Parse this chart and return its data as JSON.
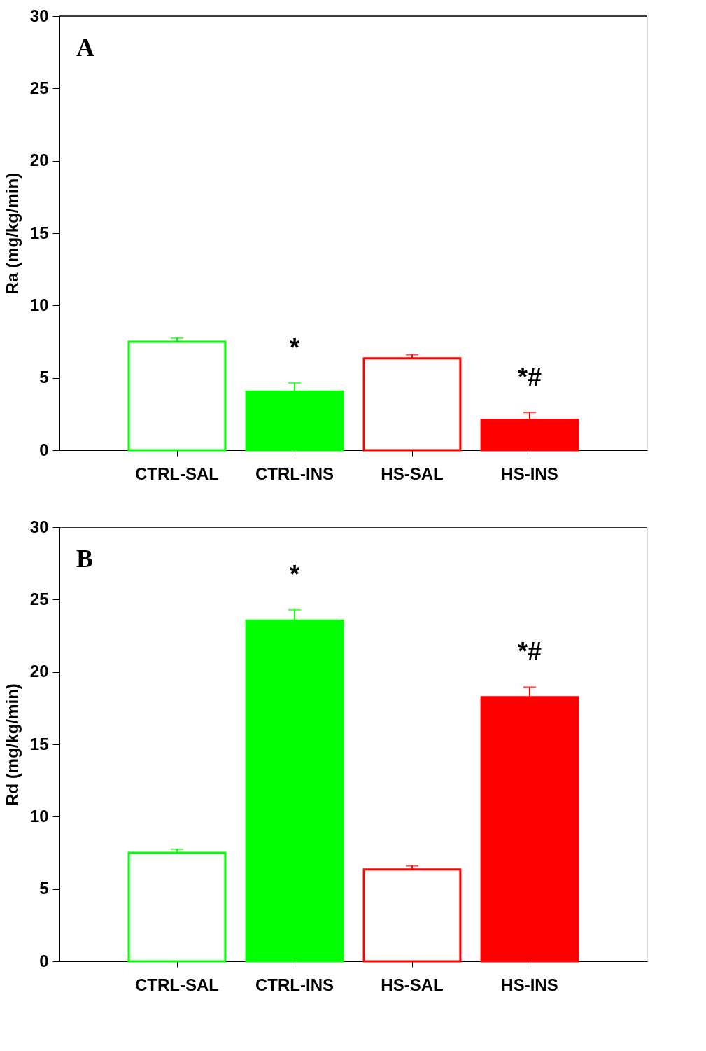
{
  "chart_data": [
    {
      "type": "bar",
      "ylabel": "Ra (mg/kg/min)",
      "categories": [
        "CTRL-SAL",
        "CTRL-INS",
        "HS-SAL",
        "HS-INS"
      ],
      "values": [
        7.5,
        4.05,
        6.35,
        2.1
      ],
      "errors": [
        0.25,
        0.6,
        0.25,
        0.5
      ],
      "colors": [
        "#00ff00",
        "#00ff00",
        "#ff0000",
        "#ff0000"
      ],
      "ylim": [
        0,
        30
      ],
      "yticks": [
        0,
        5,
        10,
        15,
        20,
        25,
        30
      ],
      "grid": false,
      "annotations": [
        "A",
        "*",
        "*#"
      ]
    },
    {
      "type": "bar",
      "ylabel": "Rd (mg/kg/min)",
      "categories": [
        "CTRL-SAL",
        "CTRL-INS",
        "HS-SAL",
        "HS-INS"
      ],
      "values": [
        7.5,
        23.55,
        6.35,
        18.25
      ],
      "errors": [
        0.25,
        0.75,
        0.25,
        0.7
      ],
      "colors": [
        "#00ff00",
        "#00ff00",
        "#ff0000",
        "#ff0000"
      ],
      "ylim": [
        0,
        30
      ],
      "yticks": [
        0,
        5,
        10,
        15,
        20,
        25,
        30
      ],
      "grid": false,
      "annotations": [
        "B",
        "*",
        "*#"
      ]
    }
  ]
}
